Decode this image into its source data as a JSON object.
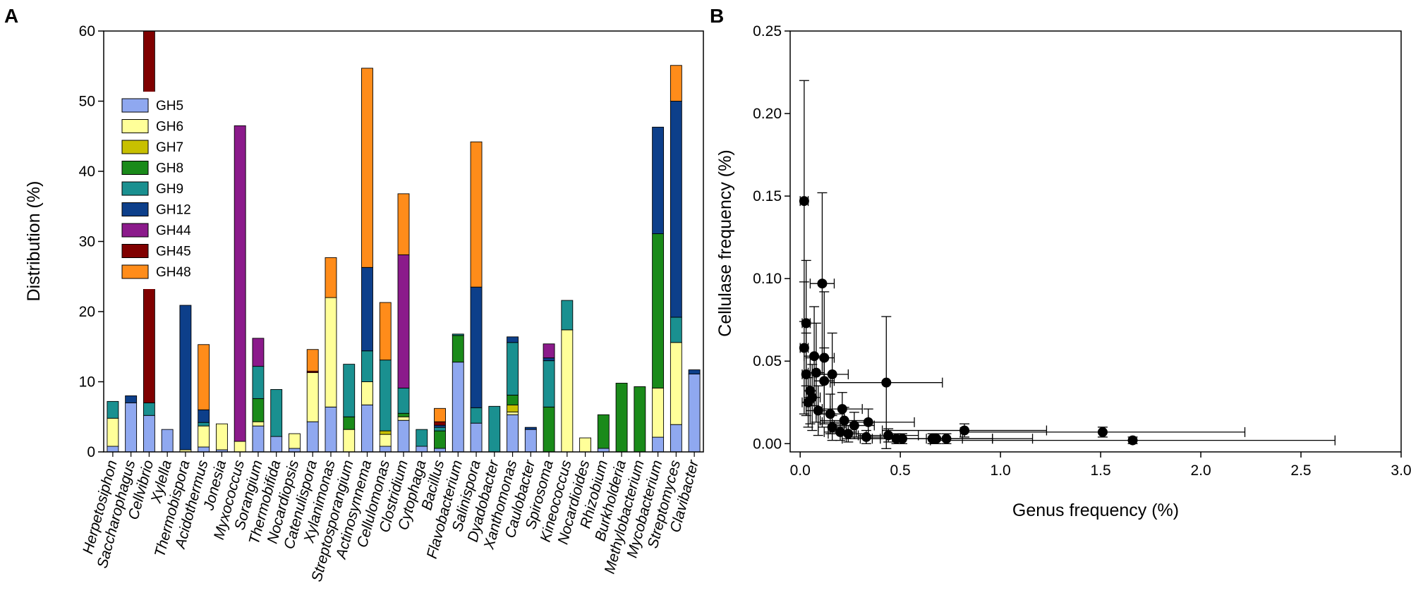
{
  "figure": {
    "panel_a_label": "A",
    "panel_b_label": "B"
  },
  "chart_data": [
    {
      "type": "bar",
      "stacked": true,
      "panel": "A",
      "xlabel": "",
      "ylabel": "Distribution (%)",
      "ylim": [
        0,
        60
      ],
      "yticks": [
        0,
        10,
        20,
        30,
        40,
        50,
        60
      ],
      "legend_position": "upper-left",
      "categories": [
        "Herpetosiphon",
        "Saccharophagus",
        "Cellvibrio",
        "Xylella",
        "Thermobispora",
        "Acidothermus",
        "Jonesia",
        "Myxococcus",
        "Sorangium",
        "Thermobifida",
        "Nocardiopsis",
        "Catenulispora",
        "Xylanimonas",
        "Streptosporangium",
        "Actinosynnema",
        "Cellulomonas",
        "Clostridium",
        "Cytophaga",
        "Bacillus",
        "Flavobacterium",
        "Salinispora",
        "Dyadobacter",
        "Xanthomonas",
        "Caulobacter",
        "Spirosoma",
        "Kineococcus",
        "Nocardioides",
        "Rhizobium",
        "Burkholderia",
        "Methylobacterium",
        "Mycobacterium",
        "Streptomyces",
        "Clavibacter"
      ],
      "series": [
        {
          "name": "GH5",
          "color": "#8fa8f0",
          "values": [
            0.8,
            7,
            5.2,
            3.2,
            0,
            0.7,
            0.3,
            0,
            3.7,
            2.2,
            0.5,
            4.3,
            6.4,
            0,
            6.7,
            0.8,
            4.5,
            0.8,
            0.5,
            12.8,
            4.1,
            0,
            5.3,
            3.2,
            0,
            0,
            0,
            0.5,
            0,
            0,
            2.1,
            3.9,
            11.1
          ]
        },
        {
          "name": "GH6",
          "color": "#ffff99",
          "values": [
            4,
            0,
            0,
            0,
            0.3,
            3,
            3.7,
            1.5,
            0.6,
            0,
            2.1,
            7,
            15.6,
            3.2,
            3.3,
            1.7,
            0.5,
            0,
            0,
            0,
            0,
            0,
            0.4,
            0,
            0,
            17.4,
            2,
            0,
            0,
            0,
            7,
            11.7,
            0
          ]
        },
        {
          "name": "GH7",
          "color": "#c8c000",
          "values": [
            0,
            0,
            0,
            0,
            0,
            0,
            0,
            0,
            0,
            0,
            0,
            0,
            0,
            0,
            0,
            0.5,
            0,
            0,
            0,
            0,
            0,
            0,
            1,
            0,
            0,
            0,
            0,
            0,
            0,
            0,
            0,
            0,
            0
          ]
        },
        {
          "name": "GH8",
          "color": "#1a8a1a",
          "values": [
            0,
            0,
            0,
            0,
            0,
            0,
            0,
            0,
            3.3,
            0,
            0,
            0,
            0,
            1.8,
            0,
            0,
            0.5,
            0,
            2.5,
            3.8,
            0,
            0,
            1.4,
            0,
            6.4,
            0,
            0,
            4.8,
            9.8,
            9.3,
            22,
            0,
            0
          ]
        },
        {
          "name": "GH9",
          "color": "#1a9090",
          "values": [
            2.4,
            0,
            1.8,
            0,
            0,
            0.5,
            0,
            0,
            4.6,
            6.7,
            0,
            0,
            0,
            7.5,
            4.4,
            10.1,
            3.6,
            2.4,
            0.5,
            0.2,
            2.2,
            6.5,
            7.5,
            0,
            6.6,
            4.2,
            0,
            0,
            0,
            0,
            0,
            3.6,
            0
          ]
        },
        {
          "name": "GH12",
          "color": "#0d3f8a",
          "values": [
            0,
            1,
            0,
            0,
            20.6,
            1.8,
            0,
            0,
            0,
            0,
            0,
            0,
            0,
            0,
            11.9,
            0,
            0,
            0,
            0.3,
            0,
            17.2,
            0,
            0.8,
            0.3,
            0.4,
            0,
            0,
            0,
            0,
            0,
            15.2,
            30.8,
            0.6
          ]
        },
        {
          "name": "GH44",
          "color": "#8b1a8b",
          "values": [
            0,
            0,
            0,
            0,
            0,
            0,
            0,
            45,
            4,
            0,
            0,
            0,
            0,
            0,
            0,
            0,
            19,
            0,
            0,
            0,
            0,
            0,
            0,
            0,
            2,
            0,
            0,
            0,
            0,
            0,
            0,
            0,
            0
          ]
        },
        {
          "name": "GH45",
          "color": "#800000",
          "values": [
            0,
            0,
            53,
            0,
            0,
            0,
            0,
            0,
            0,
            0,
            0,
            0.2,
            0,
            0,
            0,
            0,
            0,
            0,
            0.5,
            0,
            0,
            0,
            0,
            0,
            0,
            0,
            0,
            0,
            0,
            0,
            0,
            0,
            0
          ]
        },
        {
          "name": "GH48",
          "color": "#ff8c1a",
          "values": [
            0,
            0,
            0,
            0,
            0,
            9.3,
            0,
            0,
            0,
            0,
            0,
            3.1,
            5.7,
            0,
            28.4,
            8.2,
            8.7,
            0,
            1.9,
            0,
            20.7,
            0,
            0,
            0,
            0,
            0,
            0,
            0,
            0,
            0,
            0,
            5.1,
            0
          ]
        }
      ]
    },
    {
      "type": "scatter",
      "panel": "B",
      "xlabel": "Genus frequency (%)",
      "ylabel": "Cellulase frequency (%)",
      "xlim": [
        -0.05,
        3.0
      ],
      "ylim": [
        -0.005,
        0.25
      ],
      "xticks": [
        0.0,
        0.5,
        1.0,
        1.5,
        2.0,
        2.5,
        3.0
      ],
      "xtick_labels": [
        "0.0",
        "0.5",
        "1.0",
        "1.5",
        "2.0",
        "2.5",
        "3.0"
      ],
      "yticks": [
        0.0,
        0.05,
        0.1,
        0.15,
        0.2,
        0.25
      ],
      "ytick_labels": [
        "0.00",
        "0.05",
        "0.10",
        "0.15",
        "0.20",
        "0.25"
      ],
      "points": [
        {
          "x": 0.02,
          "y": 0.147,
          "xerr": 0.02,
          "yerr": 0.073
        },
        {
          "x": 0.11,
          "y": 0.097,
          "xerr": 0.06,
          "yerr": 0.055
        },
        {
          "x": 0.03,
          "y": 0.073,
          "xerr": 0.02,
          "yerr": 0.038
        },
        {
          "x": 0.02,
          "y": 0.058,
          "xerr": 0.02,
          "yerr": 0.04
        },
        {
          "x": 0.07,
          "y": 0.053,
          "xerr": 0.05,
          "yerr": 0.03
        },
        {
          "x": 0.12,
          "y": 0.052,
          "xerr": 0.05,
          "yerr": 0.04
        },
        {
          "x": 0.03,
          "y": 0.042,
          "xerr": 0.02,
          "yerr": 0.025
        },
        {
          "x": 0.08,
          "y": 0.043,
          "xerr": 0.04,
          "yerr": 0.03
        },
        {
          "x": 0.16,
          "y": 0.042,
          "xerr": 0.08,
          "yerr": 0.025
        },
        {
          "x": 0.12,
          "y": 0.038,
          "xerr": 0.05,
          "yerr": 0.02
        },
        {
          "x": 0.43,
          "y": 0.037,
          "xerr": 0.28,
          "yerr": 0.04
        },
        {
          "x": 0.05,
          "y": 0.032,
          "xerr": 0.03,
          "yerr": 0.02
        },
        {
          "x": 0.04,
          "y": 0.025,
          "xerr": 0.03,
          "yerr": 0.015
        },
        {
          "x": 0.06,
          "y": 0.028,
          "xerr": 0.04,
          "yerr": 0.02
        },
        {
          "x": 0.09,
          "y": 0.02,
          "xerr": 0.06,
          "yerr": 0.015
        },
        {
          "x": 0.15,
          "y": 0.018,
          "xerr": 0.07,
          "yerr": 0.012
        },
        {
          "x": 0.21,
          "y": 0.021,
          "xerr": 0.1,
          "yerr": 0.01
        },
        {
          "x": 0.22,
          "y": 0.014,
          "xerr": 0.12,
          "yerr": 0.008
        },
        {
          "x": 0.27,
          "y": 0.011,
          "xerr": 0.1,
          "yerr": 0.008
        },
        {
          "x": 0.16,
          "y": 0.01,
          "xerr": 0.07,
          "yerr": 0.008
        },
        {
          "x": 0.34,
          "y": 0.013,
          "xerr": 0.23,
          "yerr": 0.008
        },
        {
          "x": 0.2,
          "y": 0.007,
          "xerr": 0.08,
          "yerr": 0.005
        },
        {
          "x": 0.24,
          "y": 0.006,
          "xerr": 0.1,
          "yerr": 0.005
        },
        {
          "x": 0.33,
          "y": 0.004,
          "xerr": 0.1,
          "yerr": 0.004
        },
        {
          "x": 0.44,
          "y": 0.005,
          "xerr": 0.15,
          "yerr": 0.004
        },
        {
          "x": 0.48,
          "y": 0.003,
          "xerr": 0.15,
          "yerr": 0.003
        },
        {
          "x": 0.51,
          "y": 0.003,
          "xerr": 0.3,
          "yerr": 0.003
        },
        {
          "x": 0.66,
          "y": 0.003,
          "xerr": 0.3,
          "yerr": 0.003
        },
        {
          "x": 0.68,
          "y": 0.003,
          "xerr": 0.28,
          "yerr": 0.003
        },
        {
          "x": 0.73,
          "y": 0.003,
          "xerr": 0.43,
          "yerr": 0.003
        },
        {
          "x": 0.82,
          "y": 0.008,
          "xerr": 0.41,
          "yerr": 0.004
        },
        {
          "x": 1.51,
          "y": 0.007,
          "xerr": 0.71,
          "yerr": 0.003
        },
        {
          "x": 1.66,
          "y": 0.002,
          "xerr": 1.01,
          "yerr": 0.002
        }
      ]
    }
  ]
}
